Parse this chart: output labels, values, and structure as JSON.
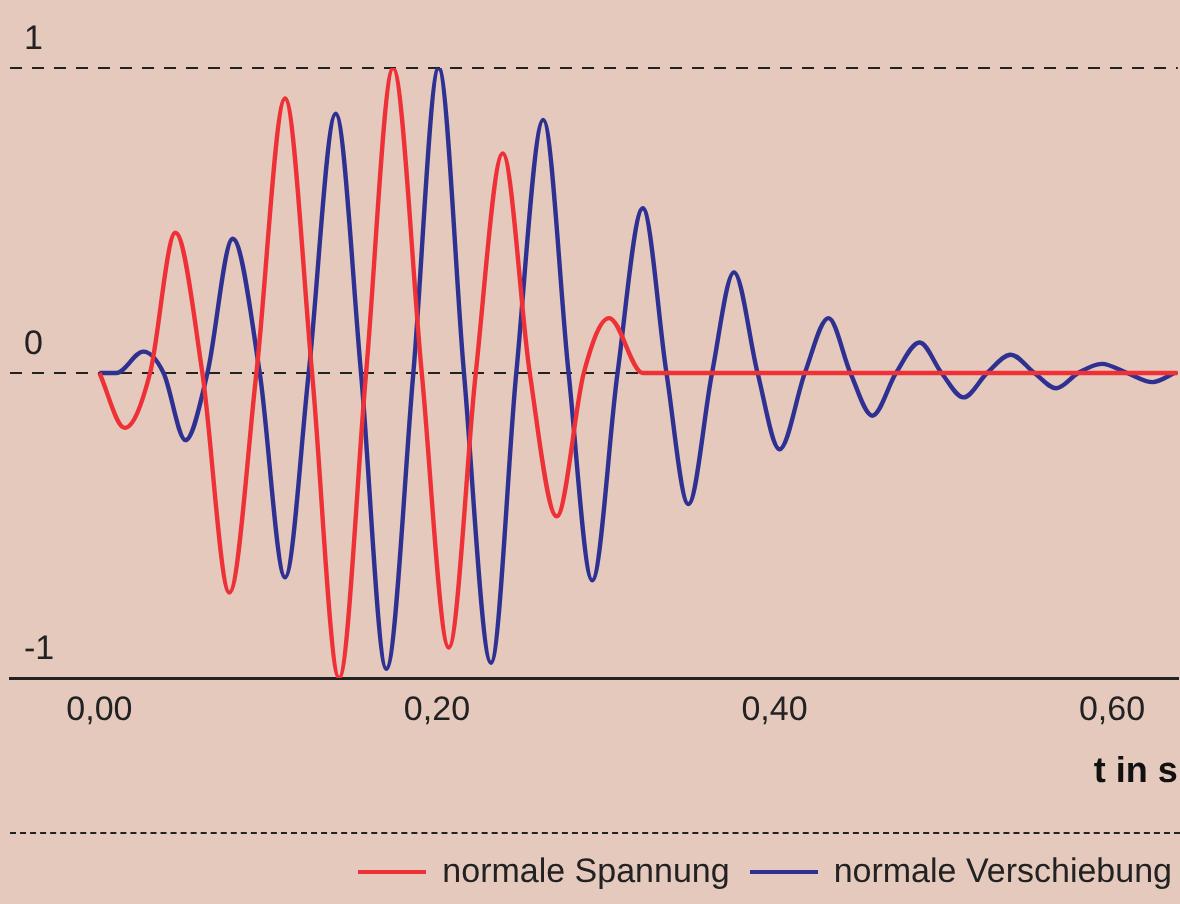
{
  "chart_data": {
    "type": "line",
    "xlabel": "t in s",
    "xlim": [
      -0.053,
      0.639
    ],
    "xticks": [
      {
        "value": 0,
        "label": "0,00"
      },
      {
        "value": 0.2,
        "label": "0,20"
      },
      {
        "value": 0.4,
        "label": "0,40"
      },
      {
        "value": 0.6,
        "label": "0,60"
      }
    ],
    "ylim": [
      -1,
      1
    ],
    "yticks": [
      -1,
      0,
      1
    ],
    "grid": "y",
    "legend": "bottom right",
    "marker": "none",
    "line_style": "solid",
    "series": [
      {
        "name": "normale Spannung",
        "color": "#ee3137",
        "x": [
          0,
          0.015,
          0.03,
          0.045,
          0.061,
          0.077,
          0.093,
          0.11,
          0.126,
          0.142,
          0.158,
          0.174,
          0.191,
          0.207,
          0.223,
          0.239,
          0.255,
          0.271,
          0.287,
          0.302,
          0.322,
          0.639
        ],
        "values": [
          0,
          -0.18,
          0,
          0.46,
          0,
          -0.72,
          0,
          0.9,
          0,
          -1,
          0,
          1,
          0,
          -0.9,
          0,
          0.72,
          0,
          -0.47,
          0,
          0.18,
          0,
          0
        ]
      },
      {
        "name": "normale Verschiebung",
        "color": "#2e3192",
        "x": [
          0,
          0.01,
          0.026,
          0.038,
          0.051,
          0.064,
          0.079,
          0.095,
          0.11,
          0.124,
          0.14,
          0.155,
          0.17,
          0.186,
          0.201,
          0.216,
          0.232,
          0.247,
          0.263,
          0.278,
          0.292,
          0.307,
          0.322,
          0.336,
          0.349,
          0.363,
          0.376,
          0.39,
          0.403,
          0.418,
          0.432,
          0.445,
          0.458,
          0.472,
          0.486,
          0.499,
          0.512,
          0.526,
          0.54,
          0.554,
          0.567,
          0.58,
          0.594,
          0.609,
          0.624,
          0.637
        ],
        "values": [
          0,
          0,
          0.07,
          0,
          -0.22,
          0,
          0.44,
          0,
          -0.67,
          0,
          0.85,
          0,
          -0.97,
          0,
          1,
          0,
          -0.95,
          0,
          0.83,
          0,
          -0.68,
          0,
          0.54,
          0,
          -0.43,
          0,
          0.33,
          0,
          -0.25,
          0,
          0.18,
          0,
          -0.14,
          0,
          0.1,
          0,
          -0.08,
          0,
          0.06,
          0,
          -0.05,
          0,
          0.03,
          0,
          -0.03,
          0
        ]
      }
    ]
  }
}
